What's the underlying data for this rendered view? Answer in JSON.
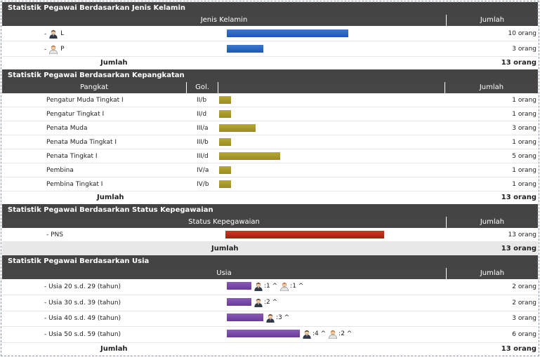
{
  "gender": {
    "title": "Statistik Pegawai Berdasarkan Jenis Kelamin",
    "col_category": "Jenis Kelamin",
    "col_count": "Jumlah",
    "rows": [
      {
        "label": "L",
        "icon": "male-icon",
        "count_text": "10 orang",
        "value": 10
      },
      {
        "label": "P",
        "icon": "female-icon",
        "count_text": "3 orang",
        "value": 3
      }
    ],
    "total_label": "Jumlah",
    "total_text": "13 orang"
  },
  "rank": {
    "title": "Statistik Pegawai Berdasarkan Kepangkatan",
    "col_rank": "Pangkat",
    "col_grade": "Gol.",
    "col_count": "Jumlah",
    "rows": [
      {
        "label": "Pengatur Muda Tingkat I",
        "grade": "II/b",
        "count_text": "1 orang",
        "value": 1
      },
      {
        "label": "Pengatur Tingkat I",
        "grade": "II/d",
        "count_text": "1 orang",
        "value": 1
      },
      {
        "label": "Penata Muda",
        "grade": "III/a",
        "count_text": "3 orang",
        "value": 3
      },
      {
        "label": "Penata Muda Tingkat I",
        "grade": "III/b",
        "count_text": "1 orang",
        "value": 1
      },
      {
        "label": "Penata Tingkat I",
        "grade": "III/d",
        "count_text": "5 orang",
        "value": 5
      },
      {
        "label": "Pembina",
        "grade": "IV/a",
        "count_text": "1 orang",
        "value": 1
      },
      {
        "label": "Pembina Tingkat I",
        "grade": "IV/b",
        "count_text": "1 orang",
        "value": 1
      }
    ],
    "total_label": "Jumlah",
    "total_text": "13 orang"
  },
  "status": {
    "title": "Statistik Pegawai Berdasarkan Status Kepegawaian",
    "col_category": "Status Kepegawaian",
    "col_count": "Jumlah",
    "rows": [
      {
        "label": "PNS",
        "count_text": "13 orang",
        "value": 13
      }
    ],
    "total_label": "Jumlah",
    "total_text": "13 orang"
  },
  "age": {
    "title": "Statistik Pegawai Berdasarkan Usia",
    "col_category": "Usia",
    "col_count": "Jumlah",
    "rows": [
      {
        "label": "Usia 20 s.d. 29 (tahun)",
        "count_text": "2 orang",
        "value": 2,
        "male_text": ":1 ^",
        "female_text": ":1 ^"
      },
      {
        "label": "Usia 30 s.d. 39 (tahun)",
        "count_text": "2 orang",
        "value": 2,
        "male_text": ":2 ^",
        "female_text": null
      },
      {
        "label": "Usia 40 s.d. 49 (tahun)",
        "count_text": "3 orang",
        "value": 3,
        "male_text": ":3 ^",
        "female_text": null
      },
      {
        "label": "Usia 50 s.d. 59 (tahun)",
        "count_text": "6 orang",
        "value": 6,
        "male_text": ":4 ^",
        "female_text": ":2 ^"
      }
    ],
    "total_label": "Jumlah",
    "total_text": "13 orang"
  }
}
